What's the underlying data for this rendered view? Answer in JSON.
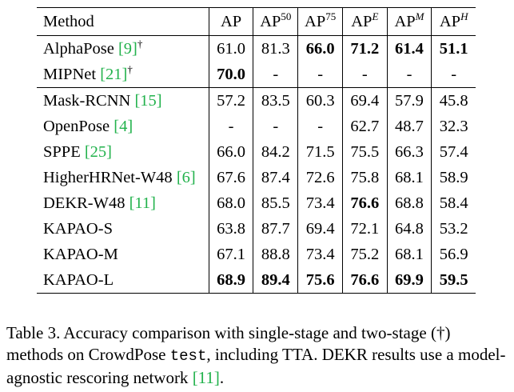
{
  "table": {
    "headers": [
      {
        "base": "Method",
        "sup": ""
      },
      {
        "base": "AP",
        "sup": ""
      },
      {
        "base": "AP",
        "sup": "50"
      },
      {
        "base": "AP",
        "sup": "75"
      },
      {
        "base": "AP",
        "sup": "E"
      },
      {
        "base": "AP",
        "sup": "M"
      },
      {
        "base": "AP",
        "sup": "H"
      }
    ],
    "rows": [
      {
        "method": "AlphaPose ",
        "ref": "[9]",
        "mark": "†",
        "values": [
          "61.0",
          "81.3",
          "66.0",
          "71.2",
          "61.4",
          "51.1"
        ],
        "bold": [
          false,
          false,
          true,
          true,
          true,
          true
        ]
      },
      {
        "method": "MIPNet ",
        "ref": "[21]",
        "mark": "†",
        "values": [
          "70.0",
          "-",
          "-",
          "-",
          "-",
          "-"
        ],
        "bold": [
          true,
          false,
          false,
          false,
          false,
          false
        ]
      },
      {
        "method": "Mask-RCNN ",
        "ref": "[15]",
        "mark": "",
        "values": [
          "57.2",
          "83.5",
          "60.3",
          "69.4",
          "57.9",
          "45.8"
        ],
        "bold": [
          false,
          false,
          false,
          false,
          false,
          false
        ]
      },
      {
        "method": "OpenPose ",
        "ref": "[4]",
        "mark": "",
        "values": [
          "-",
          "-",
          "-",
          "62.7",
          "48.7",
          "32.3"
        ],
        "bold": [
          false,
          false,
          false,
          false,
          false,
          false
        ]
      },
      {
        "method": "SPPE ",
        "ref": "[25]",
        "mark": "",
        "values": [
          "66.0",
          "84.2",
          "71.5",
          "75.5",
          "66.3",
          "57.4"
        ],
        "bold": [
          false,
          false,
          false,
          false,
          false,
          false
        ]
      },
      {
        "method": "HigherHRNet-W48 ",
        "ref": "[6]",
        "mark": "",
        "values": [
          "67.6",
          "87.4",
          "72.6",
          "75.8",
          "68.1",
          "58.9"
        ],
        "bold": [
          false,
          false,
          false,
          false,
          false,
          false
        ]
      },
      {
        "method": "DEKR-W48 ",
        "ref": "[11]",
        "mark": "",
        "values": [
          "68.0",
          "85.5",
          "73.4",
          "76.6",
          "68.8",
          "58.4"
        ],
        "bold": [
          false,
          false,
          false,
          true,
          false,
          false
        ]
      },
      {
        "method": "KAPAO-S",
        "ref": "",
        "mark": "",
        "values": [
          "63.8",
          "87.7",
          "69.4",
          "72.1",
          "64.8",
          "53.2"
        ],
        "bold": [
          false,
          false,
          false,
          false,
          false,
          false
        ]
      },
      {
        "method": "KAPAO-M",
        "ref": "",
        "mark": "",
        "values": [
          "67.1",
          "88.8",
          "73.4",
          "75.2",
          "68.1",
          "56.9"
        ],
        "bold": [
          false,
          false,
          false,
          false,
          false,
          false
        ]
      },
      {
        "method": "KAPAO-L",
        "ref": "",
        "mark": "",
        "values": [
          "68.9",
          "89.4",
          "75.6",
          "76.6",
          "69.9",
          "59.5"
        ],
        "bold": [
          true,
          true,
          true,
          true,
          true,
          true
        ]
      }
    ]
  },
  "caption": {
    "part1": "Table 3. Accuracy comparison with single-stage and two-stage (†) methods on CrowdPose ",
    "code": "test",
    "part2": ", including TTA. DEKR results use a model-agnostic rescoring network ",
    "ref": "[11]",
    "part3": "."
  },
  "colors": {
    "ref_link": "#22b24c"
  }
}
